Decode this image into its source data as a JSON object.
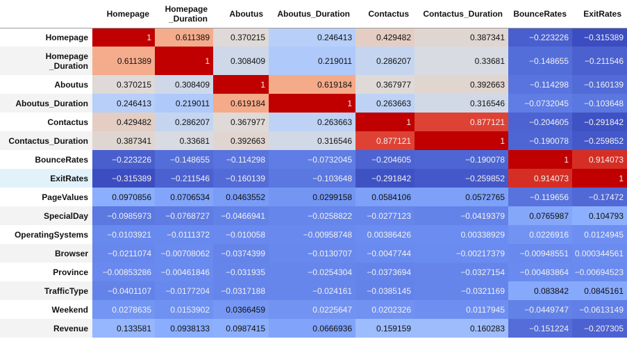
{
  "chart_data": {
    "type": "heatmap",
    "colormap": "coolwarm",
    "columns": [
      "Homepage",
      "Homepage\n_Duration",
      "Aboutus",
      "Aboutus_Duration",
      "Contactus",
      "Contactus_Duration",
      "BounceRates",
      "ExitRates"
    ],
    "rows": [
      {
        "label": "Homepage",
        "values": [
          "1",
          "0.611389",
          "0.370215",
          "0.246413",
          "0.429482",
          "0.387341",
          "−0.223226",
          "−0.315389"
        ]
      },
      {
        "label": "Homepage\n_Duration",
        "values": [
          "0.611389",
          "1",
          "0.308409",
          "0.219011",
          "0.286207",
          "0.33681",
          "−0.148655",
          "−0.211546"
        ]
      },
      {
        "label": "Aboutus",
        "values": [
          "0.370215",
          "0.308409",
          "1",
          "0.619184",
          "0.367977",
          "0.392663",
          "−0.114298",
          "−0.160139"
        ]
      },
      {
        "label": "Aboutus_Duration",
        "values": [
          "0.246413",
          "0.219011",
          "0.619184",
          "1",
          "0.263663",
          "0.316546",
          "−0.0732045",
          "−0.103648"
        ]
      },
      {
        "label": "Contactus",
        "values": [
          "0.429482",
          "0.286207",
          "0.367977",
          "0.263663",
          "1",
          "0.877121",
          "−0.204605",
          "−0.291842"
        ]
      },
      {
        "label": "Contactus_Duration",
        "values": [
          "0.387341",
          "0.33681",
          "0.392663",
          "0.316546",
          "0.877121",
          "1",
          "−0.190078",
          "−0.259852"
        ]
      },
      {
        "label": "BounceRates",
        "values": [
          "−0.223226",
          "−0.148655",
          "−0.114298",
          "−0.0732045",
          "−0.204605",
          "−0.190078",
          "1",
          "0.914073"
        ]
      },
      {
        "label": "ExitRates",
        "values": [
          "−0.315389",
          "−0.211546",
          "−0.160139",
          "−0.103648",
          "−0.291842",
          "−0.259852",
          "0.914073",
          "1"
        ]
      },
      {
        "label": "PageValues",
        "values": [
          "0.0970856",
          "0.0706534",
          "0.0463552",
          "0.0299158",
          "0.0584106",
          "0.0572765",
          "−0.119656",
          "−0.17472"
        ]
      },
      {
        "label": "SpecialDay",
        "values": [
          "−0.0985973",
          "−0.0768727",
          "−0.0466941",
          "−0.0258822",
          "−0.0277123",
          "−0.0419379",
          "0.0765987",
          "0.104793"
        ]
      },
      {
        "label": "OperatingSystems",
        "values": [
          "−0.0103921",
          "−0.0111372",
          "−0.010058",
          "−0.00958748",
          "0.00386426",
          "0.00338929",
          "0.0226916",
          "0.0124945"
        ]
      },
      {
        "label": "Browser",
        "values": [
          "−0.0211074",
          "−0.00708062",
          "−0.0374399",
          "−0.0130707",
          "−0.0047744",
          "−0.00217379",
          "−0.00948551",
          "0.000344561"
        ]
      },
      {
        "label": "Province",
        "values": [
          "−0.00853286",
          "−0.00461846",
          "−0.031935",
          "−0.0254304",
          "−0.0373694",
          "−0.0327154",
          "−0.00483864",
          "−0.00694523"
        ]
      },
      {
        "label": "TrafficType",
        "values": [
          "−0.0401107",
          "−0.0177204",
          "−0.0317188",
          "−0.024161",
          "−0.0385145",
          "−0.0321169",
          "0.083842",
          "0.0845161"
        ]
      },
      {
        "label": "Weekend",
        "values": [
          "0.0278635",
          "0.0153902",
          "0.0366459",
          "0.0225647",
          "0.0202326",
          "0.0117945",
          "−0.0449747",
          "−0.0613149"
        ]
      },
      {
        "label": "Revenue",
        "values": [
          "0.133581",
          "0.0938133",
          "0.0987415",
          "0.0666936",
          "0.159159",
          "0.160283",
          "−0.151224",
          "−0.207305"
        ]
      }
    ]
  }
}
